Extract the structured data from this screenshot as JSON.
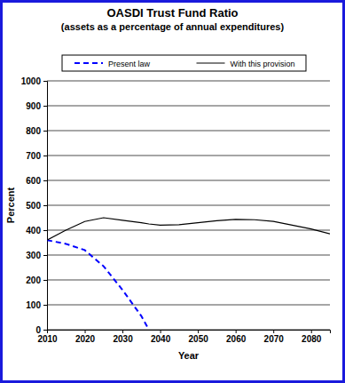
{
  "chart_data": {
    "type": "line",
    "title": "OASDI Trust Fund Ratio",
    "subtitle": "(assets as a percentage of annual expenditures)",
    "x_label": "Year",
    "y_label": "Percent",
    "x": [
      2010,
      2015,
      2020,
      2025,
      2030,
      2035,
      2037,
      2040,
      2045,
      2050,
      2055,
      2060,
      2065,
      2070,
      2075,
      2080,
      2085
    ],
    "series": [
      {
        "name": "Present law",
        "color": "#0000ff",
        "line_style": "dashed",
        "values": [
          360,
          345,
          320,
          255,
          160,
          55,
          0,
          null,
          null,
          null,
          null,
          null,
          null,
          null,
          null,
          null,
          null
        ]
      },
      {
        "name": "With this provision",
        "color": "#000000",
        "line_style": "solid",
        "values": [
          360,
          400,
          435,
          450,
          440,
          430,
          425,
          420,
          422,
          430,
          438,
          443,
          442,
          435,
          420,
          405,
          385
        ]
      }
    ],
    "xlim": [
      2010,
      2085
    ],
    "xticks": [
      2010,
      2020,
      2030,
      2040,
      2050,
      2060,
      2070,
      2080
    ],
    "ylim": [
      0,
      1000
    ],
    "yticks": [
      0,
      100,
      200,
      300,
      400,
      500,
      600,
      700,
      800,
      900,
      1000
    ],
    "grid": true,
    "legend": "top"
  }
}
